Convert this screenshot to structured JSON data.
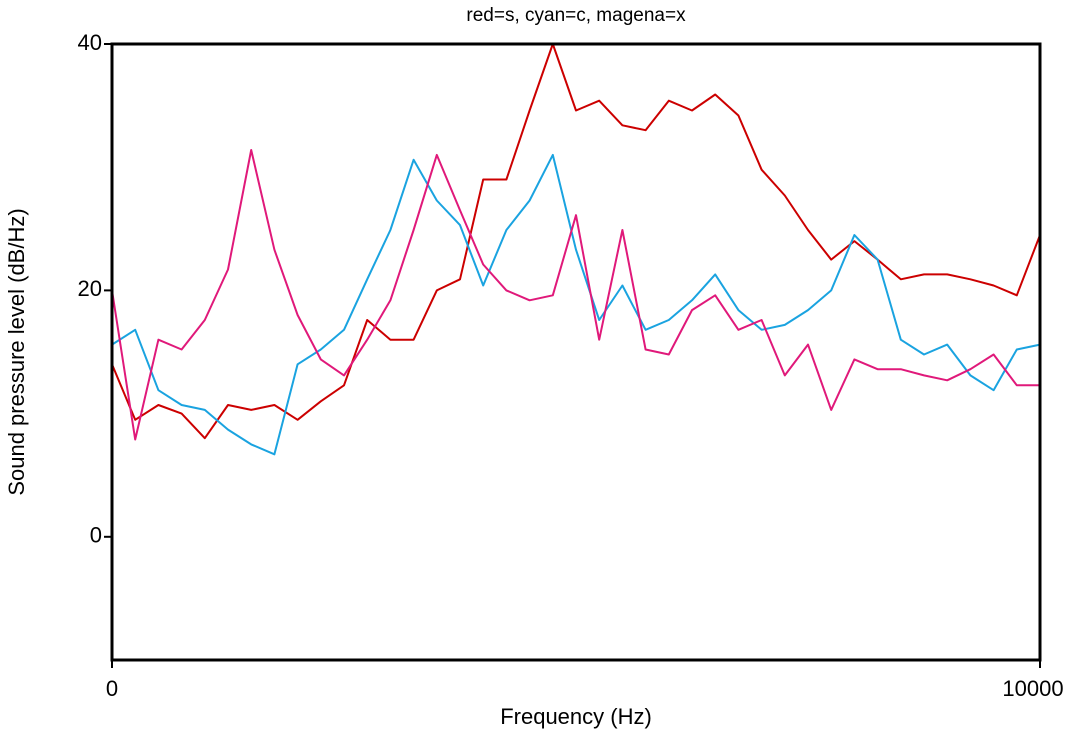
{
  "chart_data": {
    "type": "line",
    "title": "red=s, cyan=c, magena=x",
    "xlabel": "Frequency (Hz)",
    "ylabel": "Sound pressure level (dB/Hz)",
    "x": [
      0,
      250,
      500,
      750,
      1000,
      1250,
      1500,
      1750,
      2000,
      2250,
      2500,
      2750,
      3000,
      3250,
      3500,
      3750,
      4000,
      4250,
      4500,
      4750,
      5000,
      5250,
      5500,
      5750,
      6000,
      6250,
      6500,
      6750,
      7000,
      7250,
      7500,
      7750,
      8000,
      8250,
      8500,
      8750,
      9000,
      9250,
      9500,
      9750,
      10000
    ],
    "series": [
      {
        "name": "s",
        "color": "#cc0000",
        "values": [
          14,
          9.5,
          10.7,
          10,
          8,
          10.7,
          10.3,
          10.7,
          9.5,
          11,
          12.3,
          17.6,
          16,
          16,
          20,
          20.9,
          29,
          29,
          34.6,
          40,
          34.6,
          35.4,
          33.4,
          33,
          35.4,
          34.6,
          35.9,
          34.2,
          29.8,
          27.7,
          24.9,
          22.5,
          24,
          22.5,
          20.9,
          21.3,
          21.3,
          20.9,
          20.4,
          19.6,
          24.5
        ]
      },
      {
        "name": "c",
        "color": "#1aa3e0",
        "values": [
          15.6,
          16.8,
          11.9,
          10.7,
          10.3,
          8.7,
          7.5,
          6.7,
          14,
          15.2,
          16.8,
          20.9,
          24.9,
          30.6,
          27.3,
          25.3,
          20.4,
          24.9,
          27.3,
          31,
          23.3,
          17.6,
          20.4,
          16.8,
          17.6,
          19.2,
          21.3,
          18.4,
          16.8,
          17.2,
          18.4,
          20,
          24.5,
          22.5,
          16,
          14.8,
          15.6,
          13.1,
          11.9,
          15.2,
          15.6
        ]
      },
      {
        "name": "x",
        "color": "#e0197a",
        "values": [
          20,
          7.9,
          16,
          15.2,
          17.6,
          21.7,
          31.4,
          23.3,
          18,
          14.4,
          13.1,
          16,
          19.2,
          24.9,
          31,
          26.5,
          22.1,
          20,
          19.2,
          19.6,
          26.1,
          16,
          24.9,
          15.2,
          14.8,
          18.4,
          19.6,
          16.8,
          17.6,
          13.1,
          15.6,
          10.3,
          14.4,
          13.6,
          13.6,
          13.1,
          12.7,
          13.6,
          14.8,
          12.3,
          12.3
        ]
      }
    ],
    "xlim": [
      0,
      10000
    ],
    "xticks": [
      0,
      10000
    ],
    "ylim": [
      -10,
      40
    ],
    "yticks": [
      0,
      20,
      40
    ]
  }
}
